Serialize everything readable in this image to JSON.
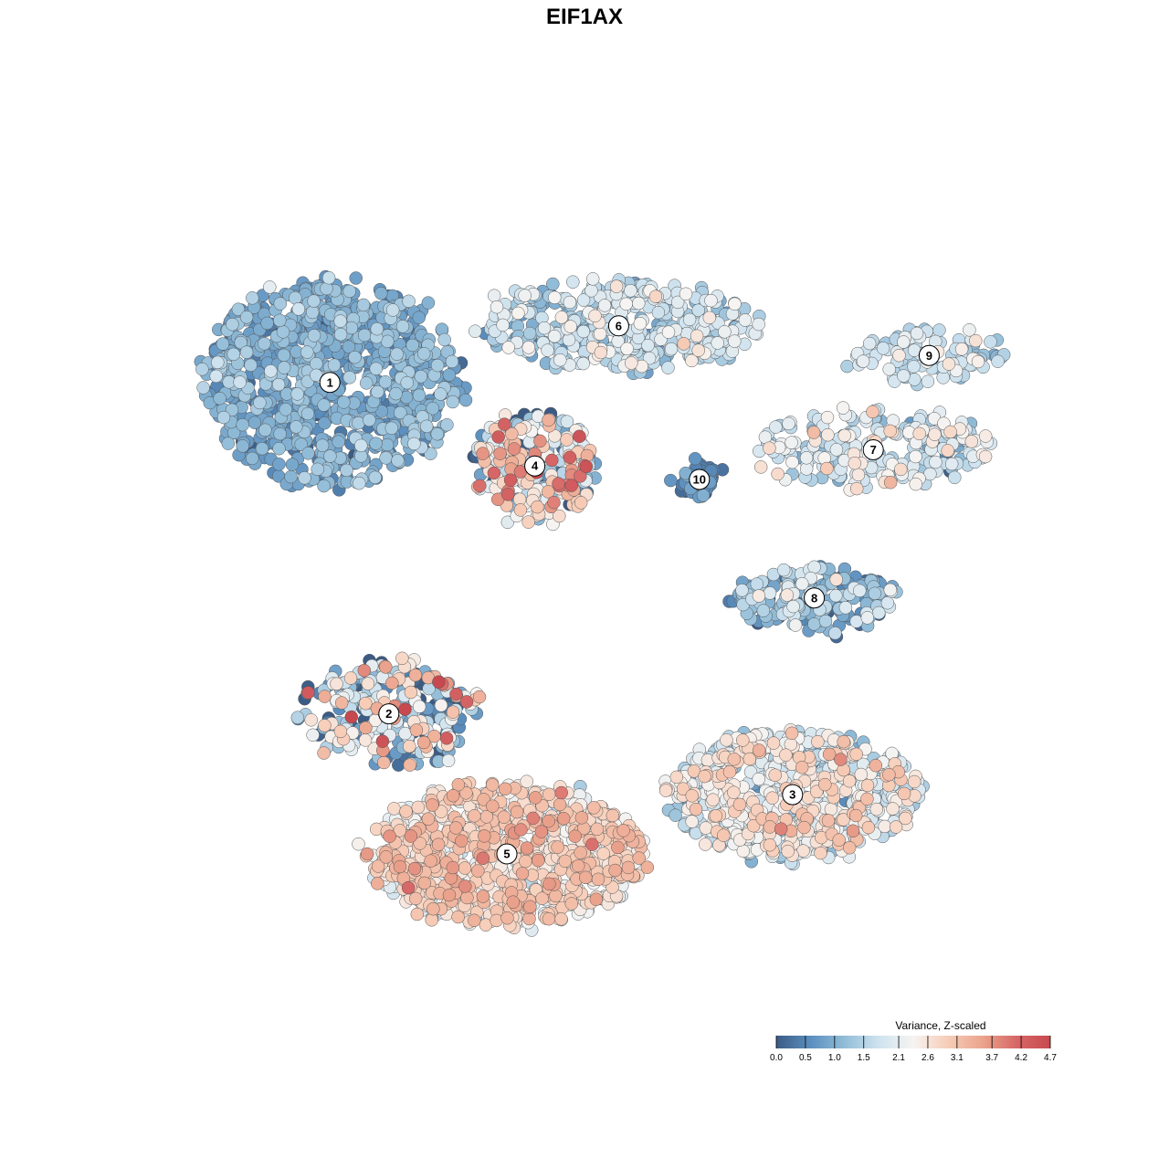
{
  "chart_data": {
    "type": "scatter",
    "title": "EIF1AX",
    "xlabel": "",
    "ylabel": "",
    "color_scale": {
      "title": "Variance, Z-scaled",
      "min": 0.0,
      "max": 4.7,
      "ticks": [
        "0.0",
        "0.5",
        "1.0",
        "1.5",
        "2.1",
        "2.6",
        "3.1",
        "3.7",
        "4.2",
        "4.7"
      ],
      "colors": [
        "#3b5b85",
        "#5b8fbf",
        "#92bdd8",
        "#cfe3ef",
        "#f6f4f2",
        "#f7cdb8",
        "#eba58e",
        "#d76868",
        "#c7494f"
      ]
    },
    "clusters": [
      {
        "label": "1",
        "x": -8.2,
        "y": 7.5,
        "spread_x": 4.2,
        "spread_y": 3.8,
        "n": 900,
        "mean_value": 0.9,
        "sd_value": 0.35
      },
      {
        "label": "6",
        "x": 1.1,
        "y": 9.6,
        "spread_x": 4.5,
        "spread_y": 1.6,
        "n": 420,
        "mean_value": 1.6,
        "sd_value": 0.5
      },
      {
        "label": "9",
        "x": 11.1,
        "y": 8.5,
        "spread_x": 2.4,
        "spread_y": 1.0,
        "n": 110,
        "mean_value": 1.7,
        "sd_value": 0.35
      },
      {
        "label": "7",
        "x": 9.3,
        "y": 5.0,
        "spread_x": 4.0,
        "spread_y": 1.4,
        "n": 230,
        "mean_value": 1.8,
        "sd_value": 0.5
      },
      {
        "label": "4",
        "x": -1.6,
        "y": 4.4,
        "spread_x": 2.0,
        "spread_y": 2.0,
        "n": 260,
        "mean_value": 2.0,
        "sd_value": 1.2
      },
      {
        "label": "10",
        "x": 3.7,
        "y": 3.9,
        "spread_x": 0.6,
        "spread_y": 0.7,
        "n": 45,
        "mean_value": 0.4,
        "sd_value": 0.25
      },
      {
        "label": "8",
        "x": 7.4,
        "y": -0.5,
        "spread_x": 2.6,
        "spread_y": 1.2,
        "n": 220,
        "mean_value": 1.0,
        "sd_value": 0.6
      },
      {
        "label": "2",
        "x": -6.3,
        "y": -4.8,
        "spread_x": 3.0,
        "spread_y": 1.9,
        "n": 280,
        "mean_value": 1.5,
        "sd_value": 1.3
      },
      {
        "label": "3",
        "x": 6.7,
        "y": -7.8,
        "spread_x": 4.0,
        "spread_y": 2.4,
        "n": 700,
        "mean_value": 2.1,
        "sd_value": 0.6
      },
      {
        "label": "5",
        "x": -2.5,
        "y": -10.0,
        "spread_x": 4.5,
        "spread_y": 2.6,
        "n": 850,
        "mean_value": 2.7,
        "sd_value": 0.45
      }
    ]
  }
}
